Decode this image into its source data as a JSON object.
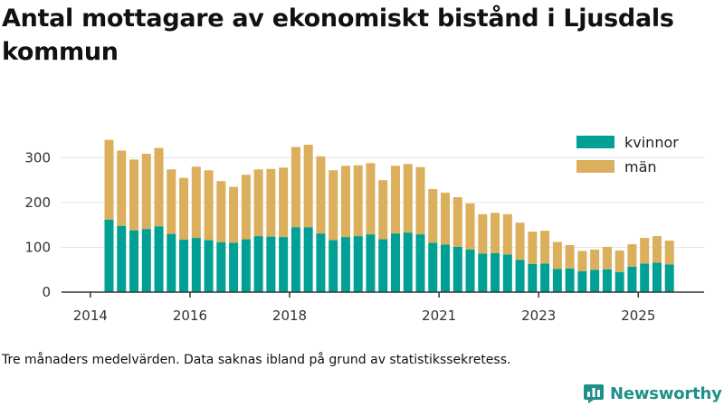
{
  "title": "Antal mottagare av ekonomiskt bistånd i Ljusdals kommun",
  "footnote": "Tre månaders medelvärden. Data saknas ibland på grund av statistikssekretess.",
  "brand": {
    "name": "Newsworthy",
    "icon": "bar-chart-logo-icon"
  },
  "colors": {
    "kvinnor": "#00a094",
    "man": "#dbaf5b",
    "axis": "#333333",
    "grid": "#e6e6e6"
  },
  "chart_data": {
    "type": "bar",
    "stacked": true,
    "title": "Antal mottagare av ekonomiskt bistånd i Ljusdals kommun",
    "xlabel": "",
    "ylabel": "",
    "ylim": [
      0,
      360
    ],
    "yticks": [
      0,
      100,
      200,
      300
    ],
    "xticks": [
      {
        "label": "2014",
        "at": -1.5
      },
      {
        "label": "2016",
        "at": 6.5
      },
      {
        "label": "2018",
        "at": 14.5
      },
      {
        "label": "2021",
        "at": 26.5
      },
      {
        "label": "2023",
        "at": 34.5
      },
      {
        "label": "2025",
        "at": 42.5
      }
    ],
    "legend": {
      "position": "top-right",
      "entries": [
        "kvinnor",
        "män"
      ]
    },
    "series": [
      {
        "name": "kvinnor",
        "values": [
          162,
          148,
          138,
          141,
          147,
          130,
          117,
          121,
          116,
          111,
          110,
          118,
          125,
          124,
          123,
          145,
          145,
          131,
          116,
          123,
          125,
          129,
          118,
          131,
          133,
          129,
          110,
          106,
          101,
          95,
          86,
          87,
          84,
          72,
          63,
          64,
          52,
          53,
          47,
          50,
          51,
          45,
          57,
          64,
          66,
          62
        ]
      },
      {
        "name": "män",
        "values": [
          178,
          168,
          158,
          168,
          175,
          144,
          138,
          159,
          156,
          137,
          125,
          144,
          149,
          151,
          155,
          179,
          184,
          172,
          156,
          159,
          158,
          159,
          132,
          151,
          153,
          150,
          120,
          116,
          111,
          103,
          88,
          90,
          90,
          83,
          72,
          73,
          60,
          52,
          45,
          45,
          50,
          48,
          50,
          57,
          59,
          53
        ]
      }
    ]
  }
}
